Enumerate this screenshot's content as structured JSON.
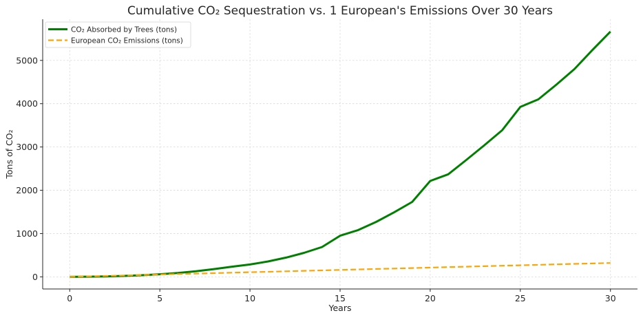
{
  "chart_data": {
    "type": "line",
    "title": "Cumulative CO₂ Sequestration vs. 1 European's Emissions Over 30 Years",
    "xlabel": "Years",
    "ylabel": "Tons of CO₂",
    "xlim": [
      -1.5,
      31.5
    ],
    "ylim": [
      -280,
      5950
    ],
    "xticks": [
      0,
      5,
      10,
      15,
      20,
      25,
      30
    ],
    "yticks": [
      0,
      1000,
      2000,
      3000,
      4000,
      5000
    ],
    "grid": true,
    "legend_position": "top-left",
    "x": [
      0,
      1,
      2,
      3,
      4,
      5,
      6,
      7,
      8,
      9,
      10,
      11,
      12,
      13,
      14,
      15,
      16,
      17,
      18,
      19,
      20,
      21,
      22,
      23,
      24,
      25,
      26,
      27,
      28,
      29,
      30
    ],
    "series": [
      {
        "name": "CO₂ Absorbed by Trees (tons)",
        "color": "#008000",
        "style": "solid",
        "values": [
          0,
          4,
          11,
          22,
          38,
          60,
          90,
          130,
          180,
          235,
          285,
          355,
          445,
          555,
          690,
          950,
          1080,
          1270,
          1490,
          1730,
          2215,
          2370,
          2700,
          3040,
          3390,
          3925,
          4100,
          4440,
          4800,
          5240,
          5665
        ]
      },
      {
        "name": "European CO₂ Emissions (tons)",
        "color": "#ffa500",
        "style": "dashed",
        "values": [
          0,
          10.7,
          21.4,
          32.1,
          42.8,
          53.5,
          64.2,
          74.9,
          85.6,
          96.3,
          107,
          117.7,
          128.4,
          139.1,
          149.8,
          160.5,
          171.2,
          181.9,
          192.6,
          203.3,
          214,
          224.7,
          235.4,
          246.1,
          256.8,
          267.5,
          278.2,
          288.9,
          299.6,
          310.3,
          321
        ]
      }
    ]
  }
}
